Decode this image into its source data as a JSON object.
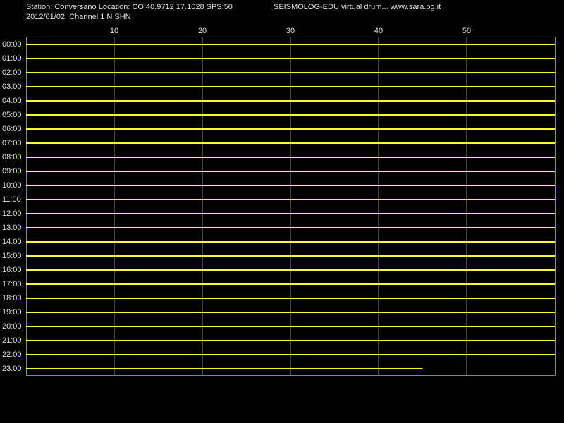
{
  "chart_data": {
    "type": "helicorder",
    "title": "Station: Conversano Location: CO 40.9712 17.1028 SPS:50",
    "title_right": "SEISMOLOG-EDU virtual drum... www.sara.pg.it",
    "subtitle": "2012/01/02  Channel 1 N SHN",
    "categories": [
      "00:00",
      "01:00",
      "02:00",
      "03:00",
      "04:00",
      "05:00",
      "06:00",
      "07:00",
      "08:00",
      "09:00",
      "10:00",
      "11:00",
      "12:00",
      "13:00",
      "14:00",
      "15:00",
      "16:00",
      "17:00",
      "18:00",
      "19:00",
      "20:00",
      "21:00",
      "22:00",
      "23:00"
    ],
    "values": [
      60,
      60,
      60,
      60,
      60,
      60,
      60,
      60,
      60,
      60,
      60,
      60,
      60,
      60,
      60,
      60,
      60,
      60,
      60,
      60,
      60,
      60,
      60,
      45
    ],
    "xlim": [
      0,
      60
    ],
    "xticks": [
      10,
      20,
      30,
      40,
      50
    ],
    "color": "#ffff00",
    "grid": true
  }
}
